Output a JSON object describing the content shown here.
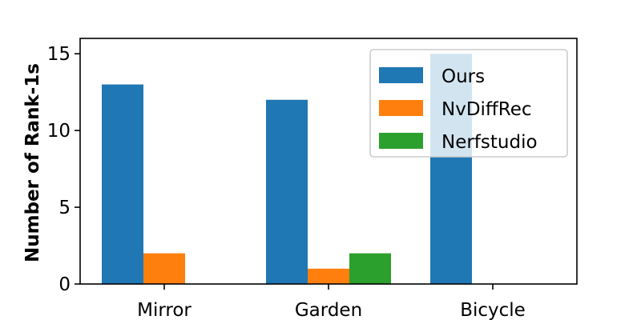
{
  "chart_data": {
    "type": "bar",
    "categories": [
      "Mirror",
      "Garden",
      "Bicycle"
    ],
    "series": [
      {
        "name": "Ours",
        "color": "#1f77b4",
        "values": [
          13,
          12,
          15
        ]
      },
      {
        "name": "NvDiffRec",
        "color": "#ff7f0e",
        "values": [
          2,
          1,
          0
        ]
      },
      {
        "name": "Nerfstudio",
        "color": "#2ca02c",
        "values": [
          0,
          2,
          0
        ]
      }
    ],
    "title": "",
    "xlabel": "",
    "ylabel": "Number of Rank-1s",
    "ylim": [
      0,
      16
    ],
    "yticks": [
      0,
      5,
      10,
      15
    ],
    "grid": false,
    "legend_position": "top-right"
  }
}
